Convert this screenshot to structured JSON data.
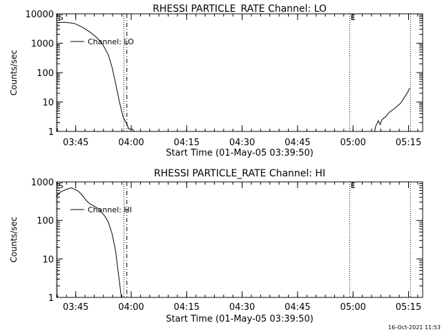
{
  "footer_timestamp": "16-Oct-2021 11:53",
  "chart_data": [
    {
      "type": "line",
      "title": "RHESSI PARTICLE_RATE Channel: LO",
      "xlabel": "Start Time (01-May-05 03:39:50)",
      "ylabel": "Counts/sec",
      "y_scale": "log",
      "ylim": [
        1,
        10000
      ],
      "xlim_minutes": [
        0,
        99
      ],
      "y_ticks": [
        {
          "value": 1,
          "label": "1"
        },
        {
          "value": 10,
          "label": "10"
        },
        {
          "value": 100,
          "label": "100"
        },
        {
          "value": 1000,
          "label": "1000"
        },
        {
          "value": 10000,
          "label": "10000"
        }
      ],
      "x_ticks": [
        {
          "minute": 5.17,
          "label": "03:45"
        },
        {
          "minute": 20.17,
          "label": "04:00"
        },
        {
          "minute": 35.17,
          "label": "04:15"
        },
        {
          "minute": 50.17,
          "label": "04:30"
        },
        {
          "minute": 65.17,
          "label": "04:45"
        },
        {
          "minute": 80.17,
          "label": "05:00"
        },
        {
          "minute": 95.17,
          "label": "05:15"
        }
      ],
      "markers": [
        {
          "minute": 0.3,
          "style": "dotted",
          "label": "S"
        },
        {
          "minute": 18.2,
          "style": "dotted",
          "label": ""
        },
        {
          "minute": 19.0,
          "style": "dashdot",
          "label": ""
        },
        {
          "minute": 79.3,
          "style": "dotted",
          "label": "E"
        },
        {
          "minute": 95.7,
          "style": "dotted",
          "label": ""
        }
      ],
      "legend": {
        "entry": "Channel: LO",
        "placement": "top-left"
      },
      "series": [
        {
          "name": "Channel: LO",
          "segments": [
            [
              [
                0,
                5000
              ],
              [
                2,
                5200
              ],
              [
                4,
                4900
              ],
              [
                5,
                4600
              ],
              [
                7,
                3500
              ],
              [
                9,
                2400
              ],
              [
                11,
                1500
              ],
              [
                12.5,
                900
              ],
              [
                14,
                400
              ],
              [
                15,
                150
              ],
              [
                16,
                40
              ],
              [
                17,
                10
              ],
              [
                18,
                3
              ],
              [
                19,
                1.8
              ],
              [
                19.5,
                1.2
              ],
              [
                20.5,
                1.2
              ],
              [
                21,
                1
              ]
            ],
            [
              [
                86,
                1
              ],
              [
                86.3,
                1.5
              ],
              [
                87,
                2.3
              ],
              [
                87.5,
                1.7
              ],
              [
                88,
                2.5
              ],
              [
                89,
                3.2
              ],
              [
                90,
                4.5
              ],
              [
                91,
                5.5
              ],
              [
                92,
                7
              ],
              [
                93,
                9
              ],
              [
                94,
                14
              ],
              [
                95,
                22
              ],
              [
                95.5,
                30
              ]
            ]
          ]
        }
      ]
    },
    {
      "type": "line",
      "title": "RHESSI PARTICLE_RATE Channel: HI",
      "xlabel": "Start Time (01-May-05 03:39:50)",
      "ylabel": "Counts/sec",
      "y_scale": "log",
      "ylim": [
        1,
        1000
      ],
      "xlim_minutes": [
        0,
        99
      ],
      "y_ticks": [
        {
          "value": 1,
          "label": "1"
        },
        {
          "value": 10,
          "label": "10"
        },
        {
          "value": 100,
          "label": "100"
        },
        {
          "value": 1000,
          "label": "1000"
        }
      ],
      "x_ticks": [
        {
          "minute": 5.17,
          "label": "03:45"
        },
        {
          "minute": 20.17,
          "label": "04:00"
        },
        {
          "minute": 35.17,
          "label": "04:15"
        },
        {
          "minute": 50.17,
          "label": "04:30"
        },
        {
          "minute": 65.17,
          "label": "04:45"
        },
        {
          "minute": 80.17,
          "label": "05:00"
        },
        {
          "minute": 95.17,
          "label": "05:15"
        }
      ],
      "markers": [
        {
          "minute": 0.3,
          "style": "dotted",
          "label": "S"
        },
        {
          "minute": 18.2,
          "style": "dotted",
          "label": ""
        },
        {
          "minute": 19.0,
          "style": "dashdot",
          "label": ""
        },
        {
          "minute": 79.3,
          "style": "dotted",
          "label": "E"
        },
        {
          "minute": 95.7,
          "style": "dotted",
          "label": ""
        }
      ],
      "legend": {
        "entry": "Channel: HI",
        "placement": "top-left"
      },
      "series": [
        {
          "name": "Channel: HI",
          "segments": [
            [
              [
                0,
                420
              ],
              [
                1,
                550
              ],
              [
                2,
                600
              ],
              [
                3,
                660
              ],
              [
                4,
                700
              ],
              [
                5,
                640
              ],
              [
                6,
                560
              ],
              [
                7,
                440
              ],
              [
                8,
                330
              ],
              [
                9,
                270
              ],
              [
                10,
                240
              ],
              [
                11,
                210
              ],
              [
                12,
                170
              ],
              [
                13,
                130
              ],
              [
                14,
                90
              ],
              [
                15,
                45
              ],
              [
                16,
                15
              ],
              [
                16.5,
                6
              ],
              [
                17,
                2.5
              ],
              [
                17.5,
                1
              ]
            ]
          ]
        }
      ]
    }
  ]
}
